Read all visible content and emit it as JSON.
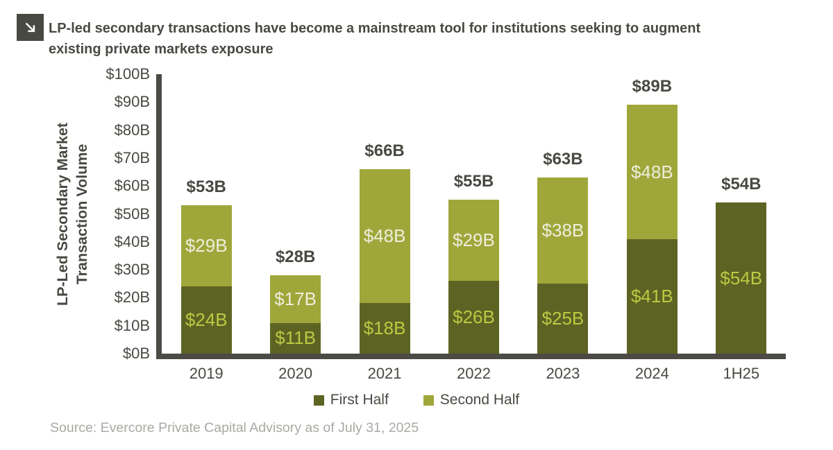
{
  "header": {
    "icon": "arrow-down-right",
    "title": "LP-led secondary transactions have become a mainstream tool for institutions seeking to augment existing private markets exposure",
    "title_lines": [
      "LP-led secondary transactions have become a mainstream tool for institutions seeking to augment",
      "existing private markets exposure"
    ]
  },
  "chart_data": {
    "type": "bar",
    "stacked": true,
    "title": "",
    "xlabel": "",
    "ylabel": "LP-Led Secondary Market Transaction Volume",
    "ylabel_lines": [
      "LP-Led Secondary Market",
      "Transaction Volume"
    ],
    "ylim": [
      0,
      100
    ],
    "ytick_step": 10,
    "ytick_labels": [
      "$0B",
      "$10B",
      "$20B",
      "$30B",
      "$40B",
      "$50B",
      "$60B",
      "$70B",
      "$80B",
      "$90B",
      "$100B"
    ],
    "grid": false,
    "legend_position": "bottom",
    "categories": [
      "2019",
      "2020",
      "2021",
      "2022",
      "2023",
      "2024",
      "1H25"
    ],
    "series": [
      {
        "name": "First Half",
        "color": "#5d6423",
        "label_color": "#bdc943",
        "values": [
          24,
          11,
          18,
          26,
          25,
          41,
          54
        ],
        "labels": [
          "$24B",
          "$11B",
          "$18B",
          "$26B",
          "$25B",
          "$41B",
          "$54B"
        ]
      },
      {
        "name": "Second Half",
        "color": "#a0a73a",
        "label_color": "#eeeedd",
        "values": [
          29,
          17,
          48,
          29,
          38,
          48,
          0
        ],
        "labels": [
          "$29B",
          "$17B",
          "$48B",
          "$29B",
          "$38B",
          "$48B",
          ""
        ]
      }
    ],
    "totals": [
      53,
      28,
      66,
      55,
      63,
      89,
      54
    ],
    "total_labels": [
      "$53B",
      "$28B",
      "$66B",
      "$55B",
      "$63B",
      "$89B",
      "$54B"
    ],
    "legend": [
      {
        "label": "First Half",
        "color": "#5d6423"
      },
      {
        "label": "Second Half",
        "color": "#a0a73a"
      }
    ],
    "colors": {
      "axis": "#4b4a45",
      "text": "#494943",
      "first_half_bar": "#5d6423",
      "second_half_bar": "#a0a73a",
      "first_half_label": "#bdc943",
      "second_half_label": "#eeeedd"
    }
  },
  "footer": {
    "source": "Source: Evercore Private Capital Advisory as of July 31, 2025"
  }
}
